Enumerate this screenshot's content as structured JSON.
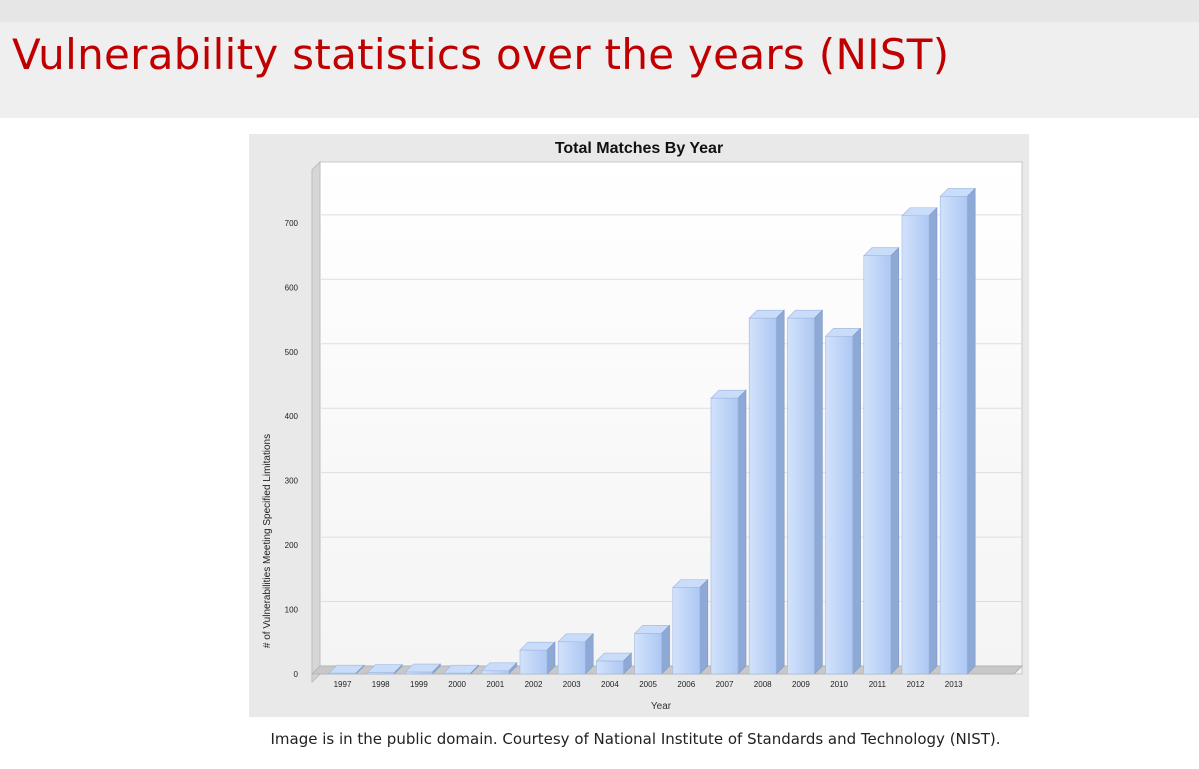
{
  "slide": {
    "title": "Vulnerability statistics over the years (NIST)",
    "caption": "Image is in the public domain. Courtesy of National Institute of Standards and Technology (NIST).",
    "title_color": "#c00000"
  },
  "chart_data": {
    "type": "bar",
    "title": "Total Matches By Year",
    "xlabel": "Year",
    "ylabel": "# of Vulnerabilities Meeting Specified Limitations",
    "categories": [
      "1997",
      "1998",
      "1999",
      "2000",
      "2001",
      "2002",
      "2003",
      "2004",
      "2005",
      "2006",
      "2007",
      "2008",
      "2009",
      "2010",
      "2011",
      "2012",
      "2013"
    ],
    "values": [
      1,
      2,
      3,
      1,
      5,
      37,
      50,
      20,
      63,
      134,
      428,
      552,
      552,
      524,
      649,
      711,
      741
    ],
    "yticks": [
      0,
      100,
      200,
      300,
      400,
      500,
      600,
      700
    ],
    "ylim": [
      0,
      800
    ],
    "grid": true,
    "bar_color": "#b9d2f7"
  }
}
